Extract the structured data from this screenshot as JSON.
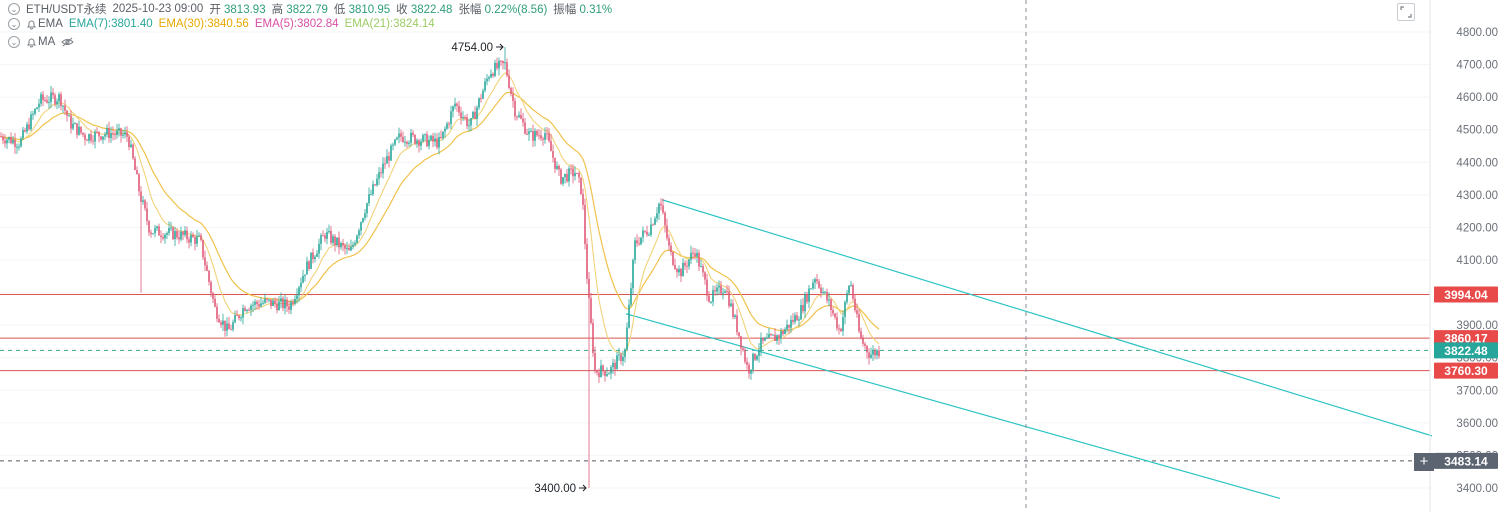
{
  "header": {
    "symbol": "ETH/USDT永续",
    "datetime": "2025-10-23 09:00",
    "open_label": "开",
    "open": "3813.93",
    "high_label": "高",
    "high": "3822.79",
    "low_label": "低",
    "low": "3810.95",
    "close_label": "收",
    "close": "3822.48",
    "change_label": "张幅",
    "change": "0.22%(8.56)",
    "amplitude_label": "振幅",
    "amplitude": "0.31%"
  },
  "ema_legend": {
    "name": "EMA",
    "items": [
      {
        "label": "EMA(7):3801.40",
        "color": "#26a69a"
      },
      {
        "label": "EMA(30):3840.56",
        "color": "#e8b400"
      },
      {
        "label": "EMA(5):3802.84",
        "color": "#d64fa5"
      },
      {
        "label": "EMA(21):3824.14",
        "color": "#9ccc65"
      }
    ]
  },
  "ma_legend": {
    "name": "MA"
  },
  "colors": {
    "up": "#26a69a",
    "down": "#e05a78",
    "ema_slow": "#f0c24b",
    "ema_fast": "#f2d27a",
    "hline": "#d9534f",
    "channel": "#2ec4c4",
    "price_tag": "#26a69a",
    "red_tag": "#e84a4a",
    "gray_tag": "#5b6470"
  },
  "chart_data": {
    "type": "candlestick",
    "ylim": [
      3360,
      4860
    ],
    "y_ticks": [
      4800,
      4700,
      4600,
      4500,
      4400,
      4300,
      4200,
      4100,
      4000,
      3900,
      3800,
      3700,
      3600,
      3500,
      3400
    ],
    "y_tick_labels": [
      "4800.00",
      "4700.00",
      "4600.00",
      "4500.00",
      "4400.00",
      "4300.00",
      "4200.00",
      "4100.00",
      "4000.00",
      "3900.00",
      "3800.00",
      "3700.00",
      "3600.00",
      "3500.00",
      "3400.00"
    ],
    "price_path": [
      [
        0,
        4480
      ],
      [
        20,
        4460
      ],
      [
        40,
        4590
      ],
      [
        60,
        4600
      ],
      [
        70,
        4520
      ],
      [
        85,
        4480
      ],
      [
        110,
        4490
      ],
      [
        128,
        4480
      ],
      [
        140,
        4300
      ],
      [
        150,
        4190
      ],
      [
        175,
        4180
      ],
      [
        200,
        4160
      ],
      [
        215,
        3950
      ],
      [
        228,
        3880
      ],
      [
        245,
        3960
      ],
      [
        265,
        3970
      ],
      [
        290,
        3960
      ],
      [
        305,
        4070
      ],
      [
        325,
        4180
      ],
      [
        350,
        4120
      ],
      [
        365,
        4260
      ],
      [
        385,
        4400
      ],
      [
        400,
        4480
      ],
      [
        420,
        4470
      ],
      [
        440,
        4460
      ],
      [
        455,
        4580
      ],
      [
        470,
        4510
      ],
      [
        490,
        4680
      ],
      [
        505,
        4700
      ],
      [
        515,
        4560
      ],
      [
        530,
        4480
      ],
      [
        545,
        4490
      ],
      [
        560,
        4350
      ],
      [
        575,
        4370
      ],
      [
        582,
        4310
      ],
      [
        588,
        4000
      ],
      [
        595,
        3760
      ],
      [
        610,
        3760
      ],
      [
        625,
        3820
      ],
      [
        635,
        4150
      ],
      [
        650,
        4200
      ],
      [
        660,
        4280
      ],
      [
        670,
        4120
      ],
      [
        680,
        4060
      ],
      [
        695,
        4130
      ],
      [
        710,
        3980
      ],
      [
        725,
        4020
      ],
      [
        740,
        3860
      ],
      [
        748,
        3760
      ],
      [
        760,
        3840
      ],
      [
        780,
        3870
      ],
      [
        800,
        3940
      ],
      [
        815,
        4050
      ],
      [
        830,
        3960
      ],
      [
        840,
        3880
      ],
      [
        850,
        4040
      ],
      [
        860,
        3860
      ],
      [
        870,
        3810
      ],
      [
        880,
        3822
      ]
    ],
    "annotations": [
      {
        "label": "4754.00",
        "price": 4754,
        "x": 505
      },
      {
        "label": "3400.00",
        "price": 3400,
        "x": 588
      }
    ],
    "horizontal_levels": [
      {
        "price": 3994.04,
        "label": "3994.04",
        "style": "solid",
        "tag": "red"
      },
      {
        "price": 3860.17,
        "label": "3860.17",
        "style": "solid",
        "tag": "red"
      },
      {
        "price": 3822.48,
        "label": "3822.48",
        "style": "dashed",
        "tag": "green"
      },
      {
        "price": 3760.3,
        "label": "3760.30",
        "style": "solid",
        "tag": "red"
      },
      {
        "price": 3483.14,
        "label": "3483.14",
        "style": "dashed",
        "tag": "gray"
      }
    ],
    "channel_lines": [
      {
        "from": [
          662,
          4285
        ],
        "to": [
          1432,
          3560
        ]
      },
      {
        "from": [
          626,
          3935
        ],
        "to": [
          1280,
          3368
        ]
      }
    ],
    "crosshair_x": 1026
  }
}
